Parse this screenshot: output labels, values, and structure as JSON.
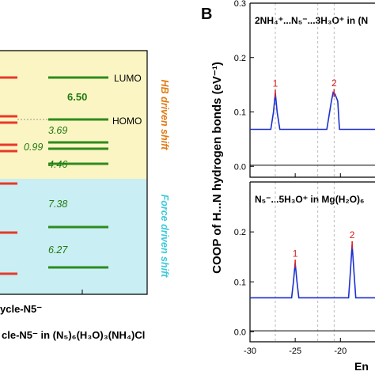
{
  "panel_a": {
    "lumo_label": "LUMO",
    "homo_label": "HOMO",
    "gap_values": [
      "6.50",
      "3.69",
      "0.99",
      "4.46",
      "7.38",
      "6.27"
    ],
    "hb_shift_label": "HB driven shift",
    "force_shift_label": "Force driven shift",
    "x_label_1": "ycle-N5⁻",
    "x_label_2": "cle-N5⁻ in (N₅)₆(H₃O)₃(NH₄)Cl",
    "colors": {
      "left_levels": "#e8392a",
      "right_levels": "#2e8b1e",
      "hb_region": "#fbf5c3",
      "force_region": "#c9eef3",
      "hb_text": "#e07a12",
      "force_text": "#3bc9da",
      "value_text": "#1f7a12"
    }
  },
  "panel_b": {
    "panel_letter": "B",
    "ylabel": "COOP of H...N hydrogen bonds (eV⁻¹)",
    "xlabel_fragment": "En",
    "top_title": "2NH₄⁺...N₅⁻...3H₃O⁺ in (N",
    "bottom_title": "N₅⁻...5H₃O⁺ in Mg(H₂O)₆",
    "top_peak_labels": [
      "1",
      "2"
    ],
    "bottom_peak_labels": [
      "1",
      "2"
    ],
    "colors": {
      "curve": "#1c2fcf",
      "baseline_curve": "#000000",
      "peak_marker": "#e02020",
      "peak_label": "#d42020"
    }
  },
  "chart_data": [
    {
      "type": "line",
      "title": "2NH₄⁺...N₅⁻...3H₃O⁺ in (N",
      "xlabel": "En",
      "ylabel": "COOP of H...N hydrogen bonds (eV⁻¹)",
      "xlim": [
        -30,
        -16
      ],
      "ylim": [
        -0.02,
        0.3
      ],
      "x_ticks": [],
      "y_ticks": [
        "0.0",
        "0.1",
        "0.2",
        "0.3"
      ],
      "series": [
        {
          "x": [
            -30,
            -27.7,
            -27.4,
            -27.2,
            -27.0,
            -26.7,
            -21.5,
            -21.0,
            -20.8,
            -20.6,
            -20.3,
            -20.1,
            -16
          ],
          "values": [
            0.068,
            0.068,
            0.1,
            0.135,
            0.1,
            0.068,
            0.068,
            0.12,
            0.136,
            0.133,
            0.12,
            0.068,
            0.068
          ]
        },
        {
          "x": [
            -30,
            -16
          ],
          "values": [
            0.002,
            0.002
          ]
        }
      ],
      "peak_labels": [
        {
          "label": "1",
          "x": -27.2,
          "y": 0.135
        },
        {
          "label": "2",
          "x": -20.7,
          "y": 0.136
        }
      ],
      "dashed_vlines_x": [
        -27.2,
        -22.5,
        -20.7
      ]
    },
    {
      "type": "line",
      "title": "N₅⁻...5H₃O⁺ in Mg(H₂O)₆",
      "xlabel": "En",
      "ylabel": "COOP of H...N hydrogen bonds (eV⁻¹)",
      "xlim": [
        -30,
        -16
      ],
      "ylim": [
        -0.02,
        0.3
      ],
      "x_ticks": [
        "-30",
        "-25",
        "-20"
      ],
      "y_ticks": [
        "0.0",
        "0.1",
        "0.2"
      ],
      "series": [
        {
          "x": [
            -30,
            -25.4,
            -25.2,
            -25.0,
            -24.8,
            -24.6,
            -19.1,
            -18.9,
            -18.7,
            -18.5,
            -18.3,
            -16
          ],
          "values": [
            0.068,
            0.068,
            0.1,
            0.138,
            0.1,
            0.068,
            0.068,
            0.12,
            0.175,
            0.12,
            0.068,
            0.068
          ]
        },
        {
          "x": [
            -30,
            -16
          ],
          "values": [
            0.002,
            0.002
          ]
        }
      ],
      "peak_labels": [
        {
          "label": "1",
          "x": -25.0,
          "y": 0.138
        },
        {
          "label": "2",
          "x": -18.7,
          "y": 0.175
        }
      ],
      "dashed_vlines_x": [
        -27.2,
        -22.5,
        -20.7
      ]
    }
  ]
}
